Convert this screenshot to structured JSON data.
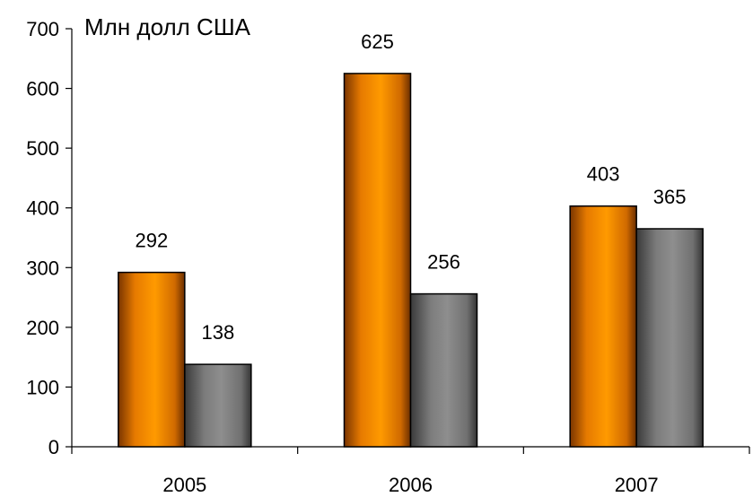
{
  "chart_data": {
    "type": "bar",
    "title": "Млн долл США",
    "xlabel": "",
    "ylabel": "",
    "categories": [
      "2005",
      "2006",
      "2007"
    ],
    "ylim": [
      0,
      700
    ],
    "yticks": [
      0,
      100,
      200,
      300,
      400,
      500,
      600,
      700
    ],
    "grid": false,
    "legend": "none",
    "series": [
      {
        "values": [
          292,
          625,
          403
        ],
        "color": "#FF9900"
      },
      {
        "values": [
          138,
          256,
          365
        ],
        "color": "#8C8C8C"
      }
    ]
  }
}
